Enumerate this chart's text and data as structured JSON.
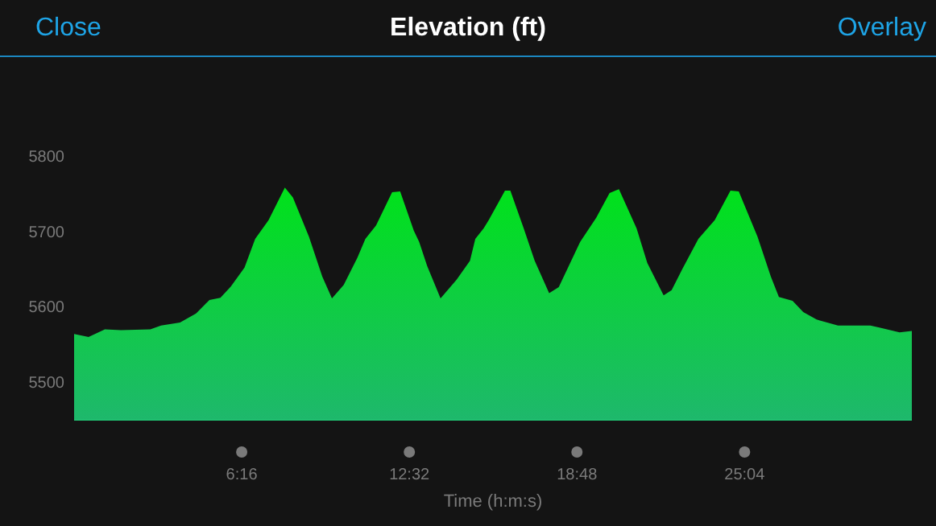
{
  "chart_data": {
    "type": "area",
    "title": "Elevation (ft)",
    "xlabel": "Time (h:m:s)",
    "annotations": [
      "Close",
      "Overlay"
    ],
    "xlim": [
      0,
      31.32
    ],
    "xticks": [
      {
        "value": 6.2667,
        "label": "6:16"
      },
      {
        "value": 12.5333,
        "label": "12:32"
      },
      {
        "value": 18.8,
        "label": "18:48"
      },
      {
        "value": 25.0667,
        "label": "25:04"
      }
    ],
    "ylim": [
      5450,
      5800
    ],
    "yticks": [
      5500,
      5600,
      5700,
      5800
    ],
    "grid": false,
    "series": [
      {
        "color": "#00e21a",
        "x": [
          0,
          0.54,
          1.15,
          1.75,
          2.85,
          3.25,
          3.96,
          4.56,
          5.06,
          5.47,
          5.86,
          6.37,
          6.77,
          7.27,
          7.88,
          8.18,
          8.78,
          9.28,
          9.64,
          10.08,
          10.59,
          10.89,
          11.29,
          11.89,
          12.19,
          12.7,
          12.9,
          13.2,
          13.7,
          14.3,
          14.8,
          15.0,
          15.31,
          15.5,
          16.11,
          16.31,
          16.81,
          17.22,
          17.76,
          18.12,
          18.92,
          19.52,
          20.02,
          20.37,
          21.03,
          21.43,
          22.04,
          22.34,
          22.74,
          23.34,
          23.95,
          24.54,
          24.85,
          25.55,
          26.05,
          26.35,
          26.86,
          27.26,
          27.76,
          28.56,
          29.77,
          30.17,
          30.86,
          31.32
        ],
        "values": [
          5564,
          5560,
          5570,
          5569,
          5570,
          5575,
          5579,
          5591,
          5609,
          5612,
          5627,
          5652,
          5690,
          5715,
          5758,
          5745,
          5693,
          5640,
          5611,
          5629,
          5665,
          5690,
          5708,
          5752,
          5753,
          5701,
          5686,
          5654,
          5611,
          5636,
          5661,
          5690,
          5704,
          5715,
          5754,
          5754,
          5704,
          5661,
          5618,
          5626,
          5686,
          5718,
          5751,
          5756,
          5704,
          5658,
          5615,
          5622,
          5650,
          5690,
          5715,
          5754,
          5753,
          5693,
          5640,
          5613,
          5608,
          5593,
          5583,
          5575,
          5575,
          5572,
          5566,
          5568
        ]
      }
    ]
  }
}
